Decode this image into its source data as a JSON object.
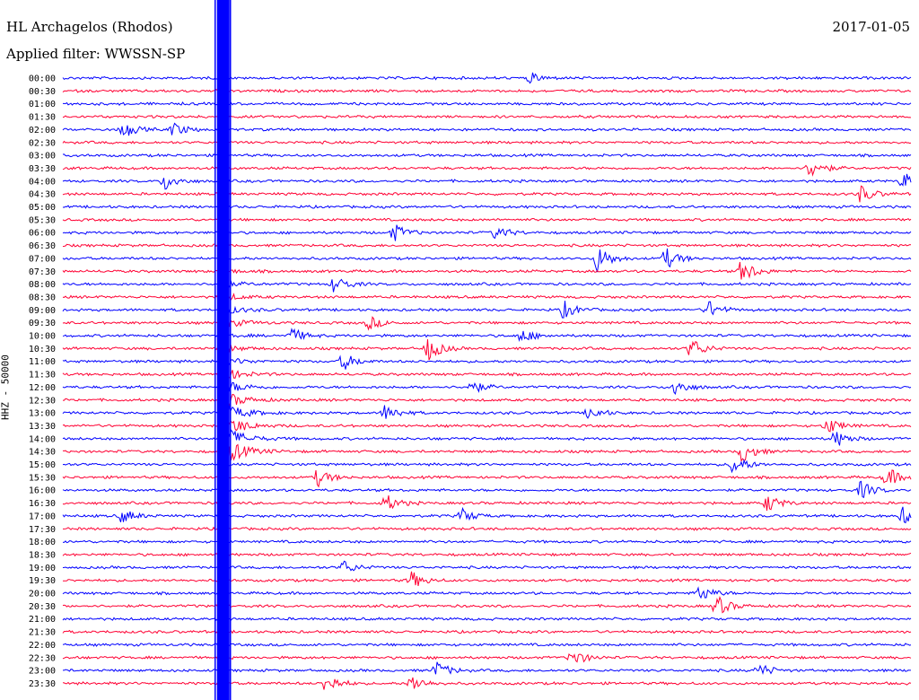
{
  "header": {
    "station": "HL Archagelos (Rhodos)",
    "filter": "Applied filter: WWSSN-SP",
    "date": "2017-01-05"
  },
  "chart_data": {
    "type": "line",
    "title": "HL Archagelos (Rhodos)",
    "subtitle": "Applied filter: WWSSN-SP",
    "ylabel": "HHZ - 50000",
    "xlabel": "",
    "row_labels": [
      "00:00",
      "00:30",
      "01:00",
      "01:30",
      "02:00",
      "02:30",
      "03:00",
      "03:30",
      "04:00",
      "04:30",
      "05:00",
      "05:30",
      "06:00",
      "06:30",
      "07:00",
      "07:30",
      "08:00",
      "08:30",
      "09:00",
      "09:30",
      "10:00",
      "10:30",
      "11:00",
      "11:30",
      "12:00",
      "12:30",
      "13:00",
      "13:30",
      "14:00",
      "14:30",
      "15:00",
      "15:30",
      "16:00",
      "16:30",
      "17:00",
      "17:30",
      "18:00",
      "18:30",
      "19:00",
      "19:30",
      "20:00",
      "20:30",
      "21:00",
      "21:30",
      "22:00",
      "22:30",
      "23:00",
      "23:30"
    ],
    "series_colors": [
      "#0000ff",
      "#ff0033"
    ],
    "events": [
      {
        "row": 0,
        "x_frac": 0.55,
        "amp": 6
      },
      {
        "row": 4,
        "x_frac": 0.07,
        "amp": 10
      },
      {
        "row": 4,
        "x_frac": 0.13,
        "amp": 8
      },
      {
        "row": 7,
        "x_frac": 0.88,
        "amp": 12
      },
      {
        "row": 8,
        "x_frac": 0.12,
        "amp": 10
      },
      {
        "row": 8,
        "x_frac": 0.99,
        "amp": 10
      },
      {
        "row": 9,
        "x_frac": 0.94,
        "amp": 10
      },
      {
        "row": 12,
        "x_frac": 0.39,
        "amp": 10
      },
      {
        "row": 12,
        "x_frac": 0.51,
        "amp": 8
      },
      {
        "row": 14,
        "x_frac": 0.63,
        "amp": 16
      },
      {
        "row": 14,
        "x_frac": 0.71,
        "amp": 12
      },
      {
        "row": 15,
        "x_frac": 0.8,
        "amp": 14
      },
      {
        "row": 16,
        "x_frac": 0.32,
        "amp": 10
      },
      {
        "row": 18,
        "x_frac": 0.59,
        "amp": 10
      },
      {
        "row": 18,
        "x_frac": 0.76,
        "amp": 10
      },
      {
        "row": 19,
        "x_frac": 0.36,
        "amp": 8
      },
      {
        "row": 20,
        "x_frac": 0.27,
        "amp": 8
      },
      {
        "row": 20,
        "x_frac": 0.54,
        "amp": 8
      },
      {
        "row": 21,
        "x_frac": 0.43,
        "amp": 14
      },
      {
        "row": 21,
        "x_frac": 0.74,
        "amp": 12
      },
      {
        "row": 22,
        "x_frac": 0.33,
        "amp": 10
      },
      {
        "row": 24,
        "x_frac": 0.48,
        "amp": 8
      },
      {
        "row": 24,
        "x_frac": 0.72,
        "amp": 10
      },
      {
        "row": 26,
        "x_frac": 0.38,
        "amp": 10
      },
      {
        "row": 26,
        "x_frac": 0.62,
        "amp": 8
      },
      {
        "row": 27,
        "x_frac": 0.9,
        "amp": 10
      },
      {
        "row": 28,
        "x_frac": 0.91,
        "amp": 10
      },
      {
        "row": 29,
        "x_frac": 0.8,
        "amp": 12
      },
      {
        "row": 30,
        "x_frac": 0.79,
        "amp": 12
      },
      {
        "row": 31,
        "x_frac": 0.3,
        "amp": 10
      },
      {
        "row": 31,
        "x_frac": 0.97,
        "amp": 12
      },
      {
        "row": 32,
        "x_frac": 0.94,
        "amp": 10
      },
      {
        "row": 33,
        "x_frac": 0.38,
        "amp": 10
      },
      {
        "row": 33,
        "x_frac": 0.83,
        "amp": 10
      },
      {
        "row": 34,
        "x_frac": 0.07,
        "amp": 8
      },
      {
        "row": 34,
        "x_frac": 0.47,
        "amp": 8
      },
      {
        "row": 34,
        "x_frac": 0.99,
        "amp": 10
      },
      {
        "row": 38,
        "x_frac": 0.33,
        "amp": 8
      },
      {
        "row": 39,
        "x_frac": 0.41,
        "amp": 10
      },
      {
        "row": 40,
        "x_frac": 0.75,
        "amp": 10
      },
      {
        "row": 41,
        "x_frac": 0.77,
        "amp": 12
      },
      {
        "row": 45,
        "x_frac": 0.6,
        "amp": 10
      },
      {
        "row": 46,
        "x_frac": 0.44,
        "amp": 10
      },
      {
        "row": 46,
        "x_frac": 0.82,
        "amp": 8
      },
      {
        "row": 47,
        "x_frac": 0.31,
        "amp": 12
      },
      {
        "row": 47,
        "x_frac": 0.41,
        "amp": 10
      }
    ],
    "main_quake": {
      "start_row": 0,
      "x_frac": 0.19,
      "peak_row": 28
    },
    "grid": false
  }
}
